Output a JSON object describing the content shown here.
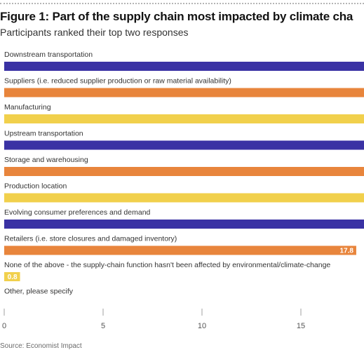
{
  "header": {
    "title": "Figure 1: Part of the supply chain most impacted by climate cha",
    "subtitle": "Participants ranked their top two responses"
  },
  "footer": {
    "source": "Source: Economist Impact"
  },
  "colors": {
    "navy": "#3a32a4",
    "orange": "#e8853c",
    "yellow": "#f1d04c",
    "axis": "#a0a0a0",
    "label_text": "#333333",
    "value_label_text": "#ffffff"
  },
  "chart_data": {
    "type": "bar",
    "orientation": "horizontal",
    "categories": [
      "Downstream transportation",
      "Suppliers (i.e. reduced supplier production or raw material availability)",
      "Manufacturing",
      "Upstream transportation",
      "Storage and warehousing",
      "Production location",
      "Evolving consumer preferences and demand",
      "Retailers (i.e. store closures and damaged inventory)",
      "None of the above - the supply-chain function hasn't been affected by environmental/climate-change",
      "Other, please specify"
    ],
    "values": [
      19,
      19,
      19,
      19,
      19,
      19,
      19,
      17.8,
      0.8,
      0
    ],
    "value_labels": [
      "",
      "",
      "",
      "",
      "",
      "",
      "",
      "17.8",
      "0.8",
      ""
    ],
    "bar_colors": [
      "#3a32a4",
      "#e8853c",
      "#f1d04c",
      "#3a32a4",
      "#e8853c",
      "#f1d04c",
      "#3a32a4",
      "#e8853c",
      "#f1d04c",
      "#3a32a4"
    ],
    "x_ticks": [
      0,
      5,
      10,
      15
    ],
    "xlim": [
      0,
      18.4
    ],
    "grid": false,
    "legend": "none"
  }
}
